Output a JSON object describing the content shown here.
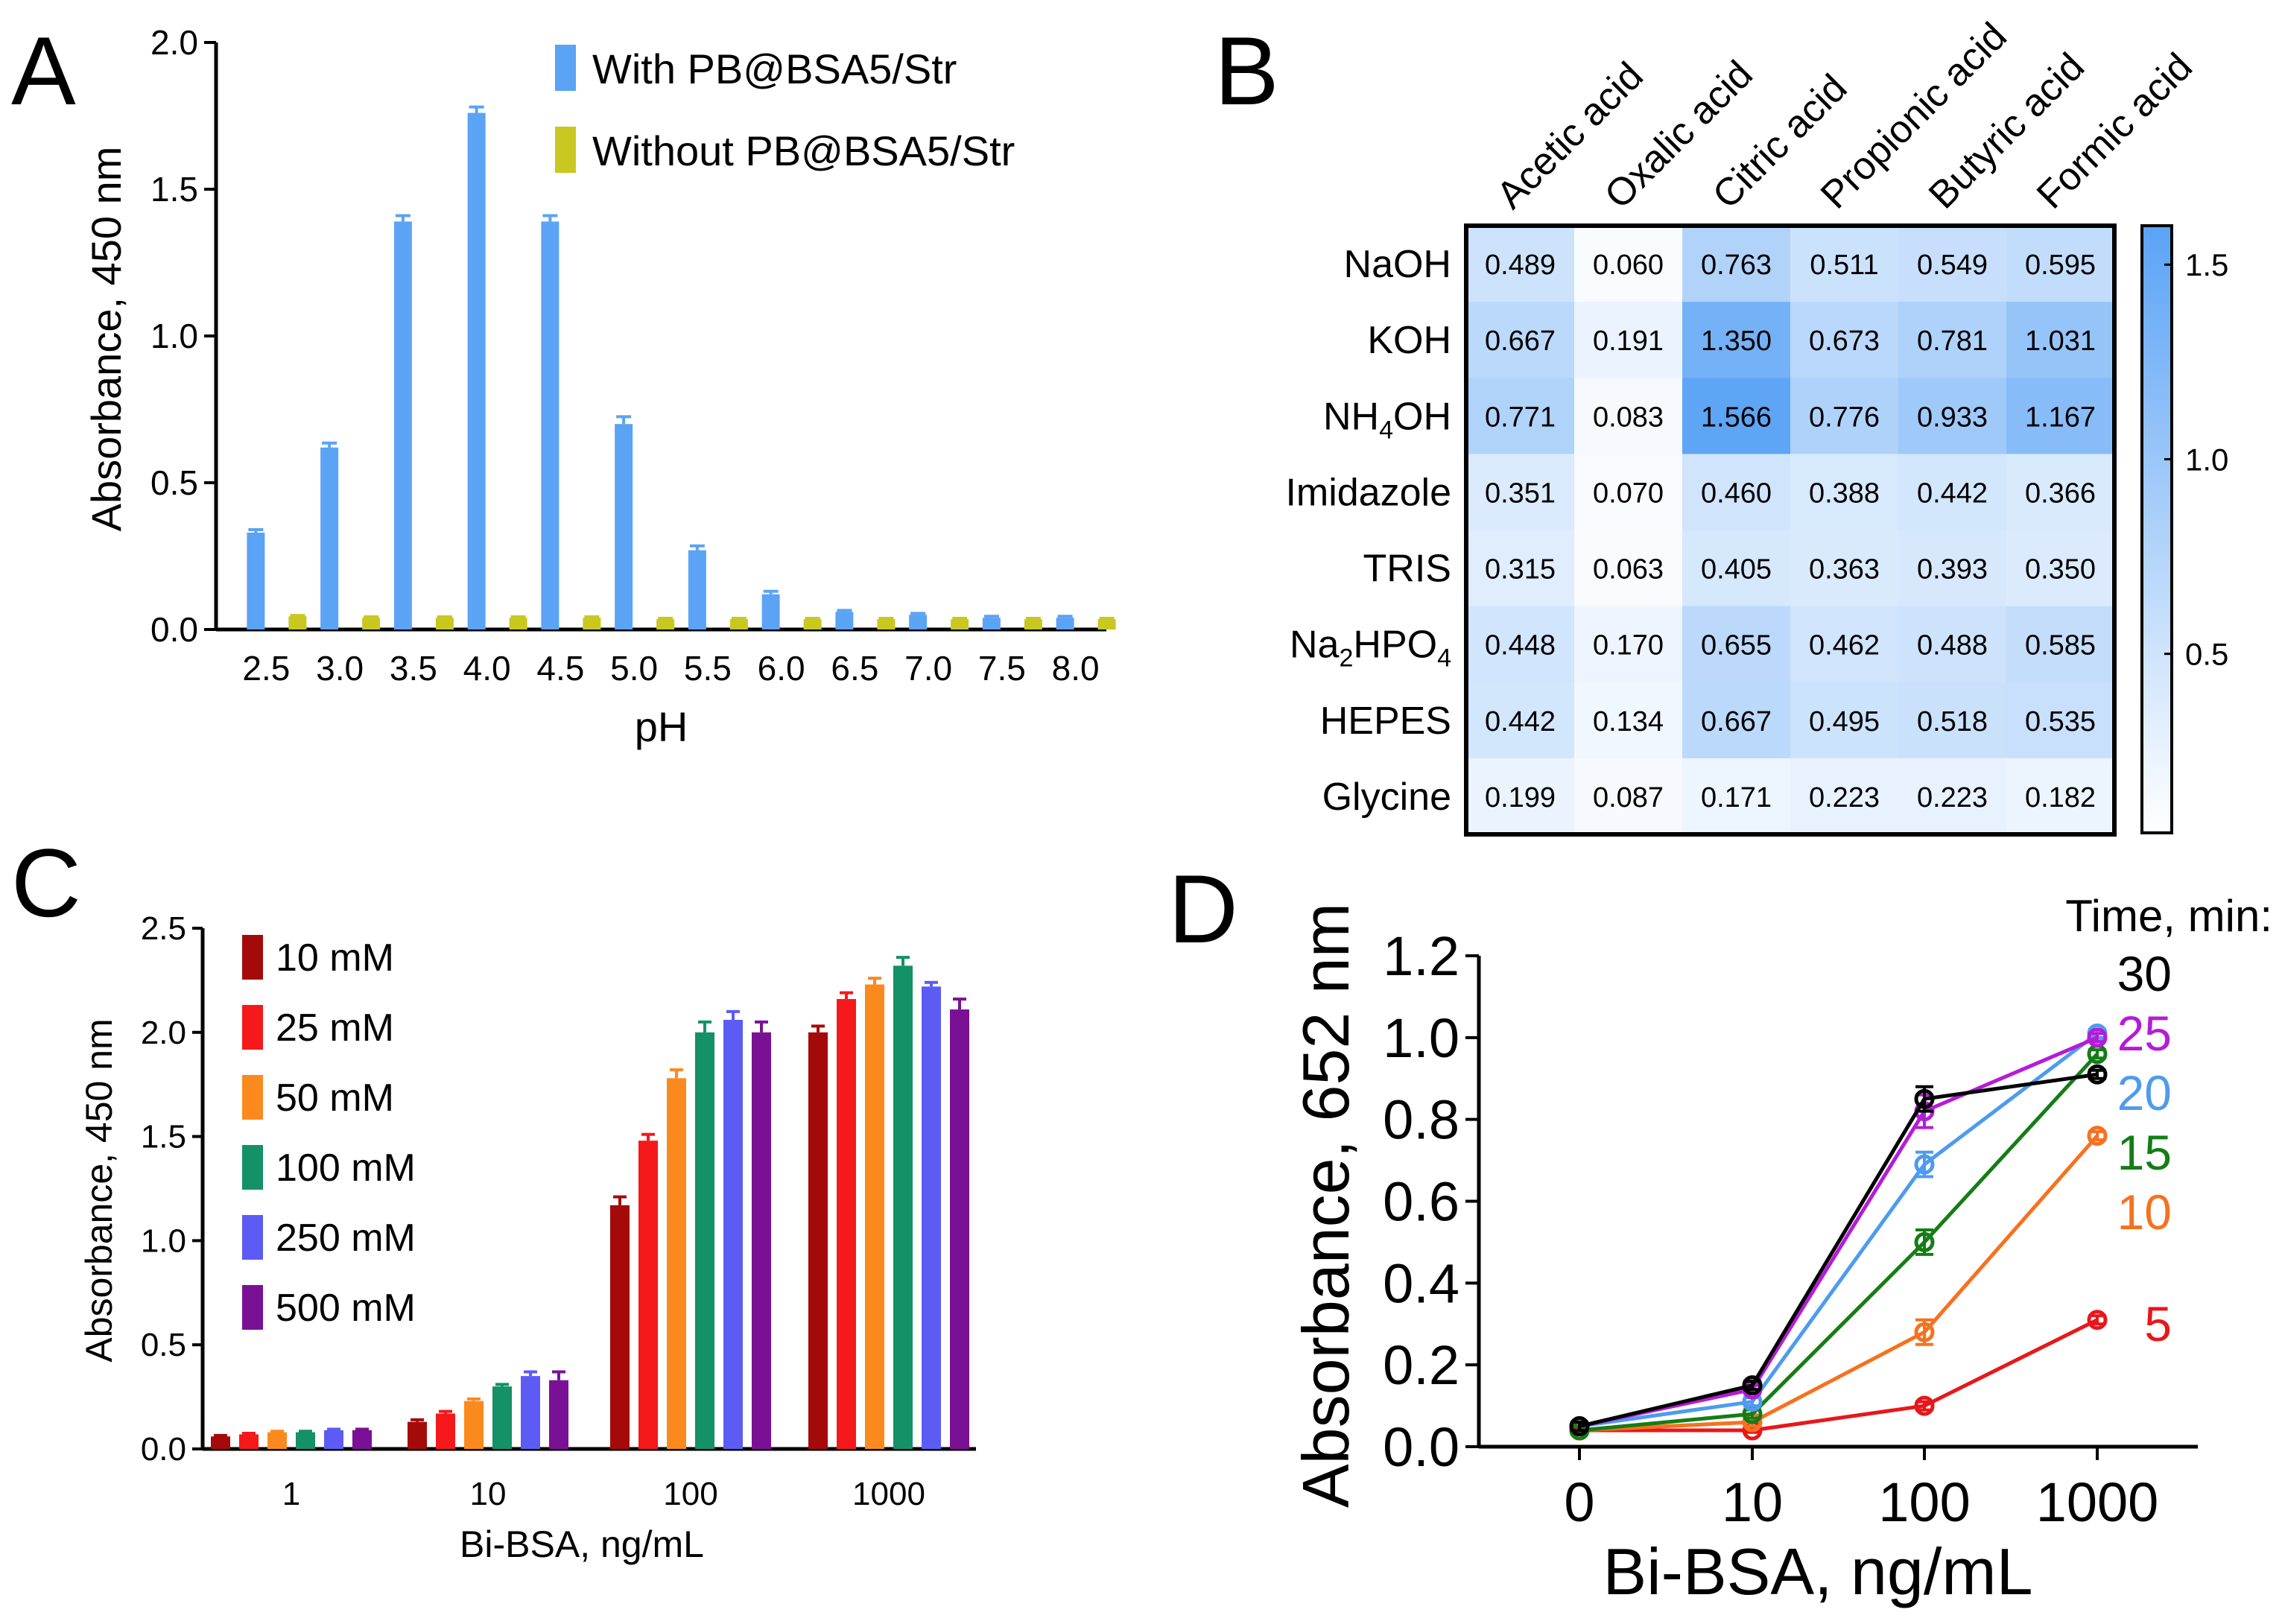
{
  "figure": {
    "panel_labels": [
      "A",
      "B",
      "C",
      "D"
    ]
  },
  "chart_data": [
    {
      "panel": "A",
      "type": "bar",
      "xlabel": "pH",
      "ylabel": "Absorbance, 450 nm",
      "ylim": [
        0,
        2.0
      ],
      "yticks": [
        "0.0",
        "0.5",
        "1.0",
        "1.5",
        "2.0"
      ],
      "categories": [
        "2.5",
        "3.0",
        "3.5",
        "4.0",
        "4.5",
        "5.0",
        "5.5",
        "6.0",
        "6.5",
        "7.0",
        "7.5",
        "8.0"
      ],
      "legend_position": "top-right",
      "series": [
        {
          "name": "With PB@BSA5/Str",
          "color": "#5ba3f5",
          "values": [
            0.33,
            0.62,
            1.39,
            1.76,
            1.39,
            0.7,
            0.27,
            0.12,
            0.06,
            0.05,
            0.04,
            0.04
          ],
          "errors": [
            0.01,
            0.015,
            0.02,
            0.02,
            0.02,
            0.025,
            0.015,
            0.01,
            0.005,
            0.005,
            0.005,
            0.005
          ]
        },
        {
          "name": "Without PB@BSA5/Str",
          "color": "#c8c820",
          "values": [
            0.045,
            0.04,
            0.04,
            0.04,
            0.04,
            0.035,
            0.035,
            0.035,
            0.035,
            0.035,
            0.035,
            0.035
          ],
          "errors": [
            0.003,
            0.003,
            0.003,
            0.003,
            0.003,
            0.003,
            0.003,
            0.003,
            0.003,
            0.003,
            0.003,
            0.003
          ]
        }
      ]
    },
    {
      "panel": "B",
      "type": "heatmap",
      "columns": [
        "Acetic acid",
        "Oxalic acid",
        "Citric acid",
        "Propionic acid",
        "Butyric acid",
        "Formic acid"
      ],
      "rows": [
        {
          "label": "NaOH",
          "base": "NaOH",
          "sub": "",
          "suffix": ""
        },
        {
          "label": "KOH",
          "base": "KOH",
          "sub": "",
          "suffix": ""
        },
        {
          "label": "NH4OH",
          "base": "NH",
          "sub": "4",
          "suffix": "OH"
        },
        {
          "label": "Imidazole",
          "base": "Imidazole",
          "sub": "",
          "suffix": ""
        },
        {
          "label": "TRIS",
          "base": "TRIS",
          "sub": "",
          "suffix": ""
        },
        {
          "label": "Na2HPO4",
          "base": "Na",
          "sub": "2",
          "suffix": "HPO",
          "sub2": "4"
        },
        {
          "label": "HEPES",
          "base": "HEPES",
          "sub": "",
          "suffix": ""
        },
        {
          "label": "Glycine",
          "base": "Glycine",
          "sub": "",
          "suffix": ""
        }
      ],
      "values": [
        [
          "0.489",
          "0.060",
          "0.763",
          "0.511",
          "0.549",
          "0.595"
        ],
        [
          "0.667",
          "0.191",
          "1.350",
          "0.673",
          "0.781",
          "1.031"
        ],
        [
          "0.771",
          "0.083",
          "1.566",
          "0.776",
          "0.933",
          "1.167"
        ],
        [
          "0.351",
          "0.070",
          "0.460",
          "0.388",
          "0.442",
          "0.366"
        ],
        [
          "0.315",
          "0.063",
          "0.405",
          "0.363",
          "0.393",
          "0.350"
        ],
        [
          "0.448",
          "0.170",
          "0.655",
          "0.462",
          "0.488",
          "0.585"
        ],
        [
          "0.442",
          "0.134",
          "0.667",
          "0.495",
          "0.518",
          "0.535"
        ],
        [
          "0.199",
          "0.087",
          "0.171",
          "0.223",
          "0.223",
          "0.182"
        ]
      ],
      "colorbar": {
        "min": 0.0,
        "max": 1.6,
        "ticks": [
          "0.5",
          "1.0",
          "1.5"
        ],
        "low_color": "#ffffff",
        "high_color": "#5ba3f5"
      }
    },
    {
      "panel": "C",
      "type": "bar",
      "xlabel": "Bi-BSA, ng/mL",
      "ylabel": "Absorbance, 450 nm",
      "ylim": [
        0,
        2.5
      ],
      "yticks": [
        "0.0",
        "0.5",
        "1.0",
        "1.5",
        "2.0",
        "2.5"
      ],
      "categories": [
        "1",
        "10",
        "100",
        "1000"
      ],
      "legend_position": "top-left",
      "series": [
        {
          "name": "10 mM",
          "color": "#a50a0a",
          "values": [
            0.06,
            0.13,
            1.17,
            2.0
          ],
          "errors": [
            0.005,
            0.01,
            0.04,
            0.03
          ]
        },
        {
          "name": "25 mM",
          "color": "#f5191c",
          "values": [
            0.07,
            0.17,
            1.48,
            2.16
          ],
          "errors": [
            0.005,
            0.01,
            0.03,
            0.03
          ]
        },
        {
          "name": "50 mM",
          "color": "#fb8a1e",
          "values": [
            0.08,
            0.23,
            1.78,
            2.23
          ],
          "errors": [
            0.005,
            0.01,
            0.04,
            0.03
          ]
        },
        {
          "name": "100 mM",
          "color": "#149166",
          "values": [
            0.08,
            0.3,
            2.0,
            2.32
          ],
          "errors": [
            0.005,
            0.01,
            0.05,
            0.04
          ]
        },
        {
          "name": "250 mM",
          "color": "#5c5cf5",
          "values": [
            0.09,
            0.35,
            2.06,
            2.22
          ],
          "errors": [
            0.005,
            0.02,
            0.04,
            0.02
          ]
        },
        {
          "name": "500 mM",
          "color": "#7a1195",
          "values": [
            0.09,
            0.33,
            2.0,
            2.11
          ],
          "errors": [
            0.005,
            0.04,
            0.05,
            0.05
          ]
        }
      ]
    },
    {
      "panel": "D",
      "type": "line",
      "xlabel": "Bi-BSA, ng/mL",
      "ylabel": "Absorbance, 652 nm",
      "ylim": [
        0,
        1.2
      ],
      "yticks": [
        "0.0",
        "0.2",
        "0.4",
        "0.6",
        "0.8",
        "1.0",
        "1.2"
      ],
      "categories": [
        "0",
        "10",
        "100",
        "1000"
      ],
      "legend_title": "Time, min:",
      "legend_position": "right",
      "series": [
        {
          "name": "30",
          "color": "#000000",
          "values": [
            0.05,
            0.15,
            0.85,
            0.91
          ],
          "errors": [
            0.01,
            0.01,
            0.03,
            0.01
          ]
        },
        {
          "name": "25",
          "color": "#b61bd8",
          "values": [
            0.05,
            0.14,
            0.82,
            1.0
          ],
          "errors": [
            0.01,
            0.01,
            0.04,
            0.01
          ]
        },
        {
          "name": "20",
          "color": "#4e9bef",
          "values": [
            0.05,
            0.11,
            0.69,
            1.01
          ],
          "errors": [
            0.01,
            0.01,
            0.03,
            0.01
          ]
        },
        {
          "name": "15",
          "color": "#157d15",
          "values": [
            0.04,
            0.08,
            0.5,
            0.96
          ],
          "errors": [
            0.01,
            0.01,
            0.03,
            0.01
          ]
        },
        {
          "name": "10",
          "color": "#f7711e",
          "values": [
            0.04,
            0.06,
            0.28,
            0.76
          ],
          "errors": [
            0.01,
            0.01,
            0.03,
            0.01
          ]
        },
        {
          "name": "5",
          "color": "#e8171b",
          "values": [
            0.04,
            0.04,
            0.1,
            0.31
          ],
          "errors": [
            0.005,
            0.005,
            0.01,
            0.01
          ]
        }
      ]
    }
  ]
}
